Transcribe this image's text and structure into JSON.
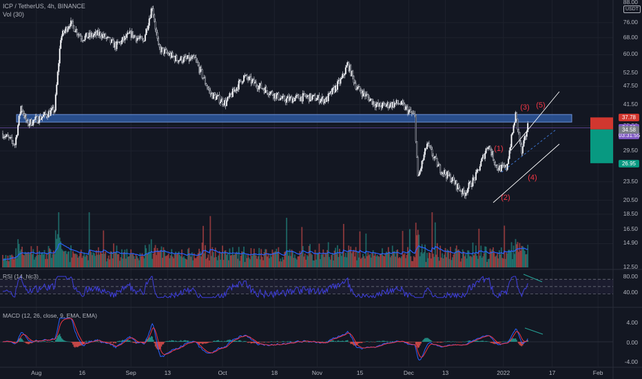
{
  "header": {
    "symbol_line": "ICP / TetherUS, 4h, BINANCE",
    "volume_label": "Vol (30)"
  },
  "price_axis": {
    "currency_badge": "USDT",
    "labels": [
      "88.00",
      "76.00",
      "68.00",
      "60.00",
      "52.50",
      "47.50",
      "41.50",
      "35.50",
      "29.50",
      "23.50",
      "20.50",
      "18.50",
      "16.50",
      "14.90",
      "12.50"
    ]
  },
  "price_tags": [
    {
      "value": "37.78",
      "color": "#d1372f"
    },
    {
      "value": "34.99",
      "color": "#7e57c2"
    },
    {
      "value": "03:31:55",
      "color": "#7e57c2"
    },
    {
      "value": "34.58",
      "color": "#787b86"
    },
    {
      "value": "26.95",
      "color": "#089981"
    }
  ],
  "rsi": {
    "label": "RSI (14, hlc3)",
    "levels": [
      "80.00",
      "40.00"
    ]
  },
  "macd": {
    "label": "MACD (12, 26, close, 9, EMA, EMA)",
    "levels": [
      "4.00",
      "0.00",
      "-4.00"
    ]
  },
  "time_axis": [
    "Aug",
    "16",
    "Sep",
    "13",
    "Oct",
    "18",
    "Nov",
    "15",
    "Dec",
    "13",
    "2022",
    "17",
    "Feb"
  ],
  "elliott_waves": [
    "(1)",
    "(2)",
    "(3)",
    "(4)",
    "(5)"
  ],
  "colors": {
    "background": "#131722",
    "candle_up": "#ffffff",
    "zone": "#2f5ca8",
    "channel": "#ffffff",
    "wave_label": "#f23645",
    "rsi_line": "#3f3fe0",
    "macd_line": "#2962ff",
    "signal_line": "#f23645",
    "volume_ma": "#2962ff",
    "position_loss": "#d1372f",
    "position_profit": "#089981"
  },
  "chart_data": {
    "type": "candlestick",
    "symbol": "ICP / TetherUS",
    "interval": "4h",
    "exchange": "BINANCE",
    "price_path": [
      {
        "date": "Jul 21",
        "price": 33.5
      },
      {
        "date": "Jul 25",
        "price": 31.0
      },
      {
        "date": "Jul 27",
        "price": 41.0
      },
      {
        "date": "Jul 29",
        "price": 36.0
      },
      {
        "date": "Aug 3",
        "price": 38.0
      },
      {
        "date": "Aug 7",
        "price": 40.0
      },
      {
        "date": "Aug 9",
        "price": 68.0
      },
      {
        "date": "Aug 12",
        "price": 76.0
      },
      {
        "date": "Aug 16",
        "price": 68.0
      },
      {
        "date": "Aug 22",
        "price": 70.0
      },
      {
        "date": "Aug 27",
        "price": 64.0
      },
      {
        "date": "Sep 1",
        "price": 70.0
      },
      {
        "date": "Sep 5",
        "price": 66.0
      },
      {
        "date": "Sep 8",
        "price": 86.0
      },
      {
        "date": "Sep 10",
        "price": 63.0
      },
      {
        "date": "Sep 16",
        "price": 58.0
      },
      {
        "date": "Sep 22",
        "price": 58.0
      },
      {
        "date": "Sep 27",
        "price": 45.0
      },
      {
        "date": "Oct 2",
        "price": 42.0
      },
      {
        "date": "Oct 8",
        "price": 51.0
      },
      {
        "date": "Oct 14",
        "price": 47.0
      },
      {
        "date": "Oct 21",
        "price": 43.0
      },
      {
        "date": "Oct 28",
        "price": 44.0
      },
      {
        "date": "Nov 4",
        "price": 43.0
      },
      {
        "date": "Nov 9",
        "price": 50.0
      },
      {
        "date": "Nov 11",
        "price": 56.0
      },
      {
        "date": "Nov 14",
        "price": 47.0
      },
      {
        "date": "Nov 21",
        "price": 41.0
      },
      {
        "date": "Nov 28",
        "price": 42.0
      },
      {
        "date": "Dec 3",
        "price": 38.0
      },
      {
        "date": "Dec 4",
        "price": 24.0
      },
      {
        "date": "Dec 7",
        "price": 31.0
      },
      {
        "date": "Dec 11",
        "price": 26.0
      },
      {
        "date": "Dec 15",
        "price": 24.0
      },
      {
        "date": "Dec 19",
        "price": 21.5
      },
      {
        "date": "Dec 23",
        "price": 24.5
      },
      {
        "date": "Dec 27",
        "price": 31.0
      },
      {
        "date": "Dec 30",
        "price": 26.0
      },
      {
        "date": "Jan 2",
        "price": 26.0
      },
      {
        "date": "Jan 5",
        "price": 38.5
      },
      {
        "date": "Jan 7",
        "price": 29.0
      },
      {
        "date": "Jan 9",
        "price": 35.5
      }
    ],
    "horizontal_zone": {
      "low": 36.5,
      "high": 38.6
    },
    "last_price": 34.99,
    "position": {
      "stop": 37.78,
      "entry": 34.58,
      "target": 26.95
    },
    "rsi_levels": [
      80,
      40
    ],
    "macd_ylim": [
      -4,
      4
    ],
    "ylim": [
      12.5,
      88.0
    ],
    "scale": "log"
  }
}
